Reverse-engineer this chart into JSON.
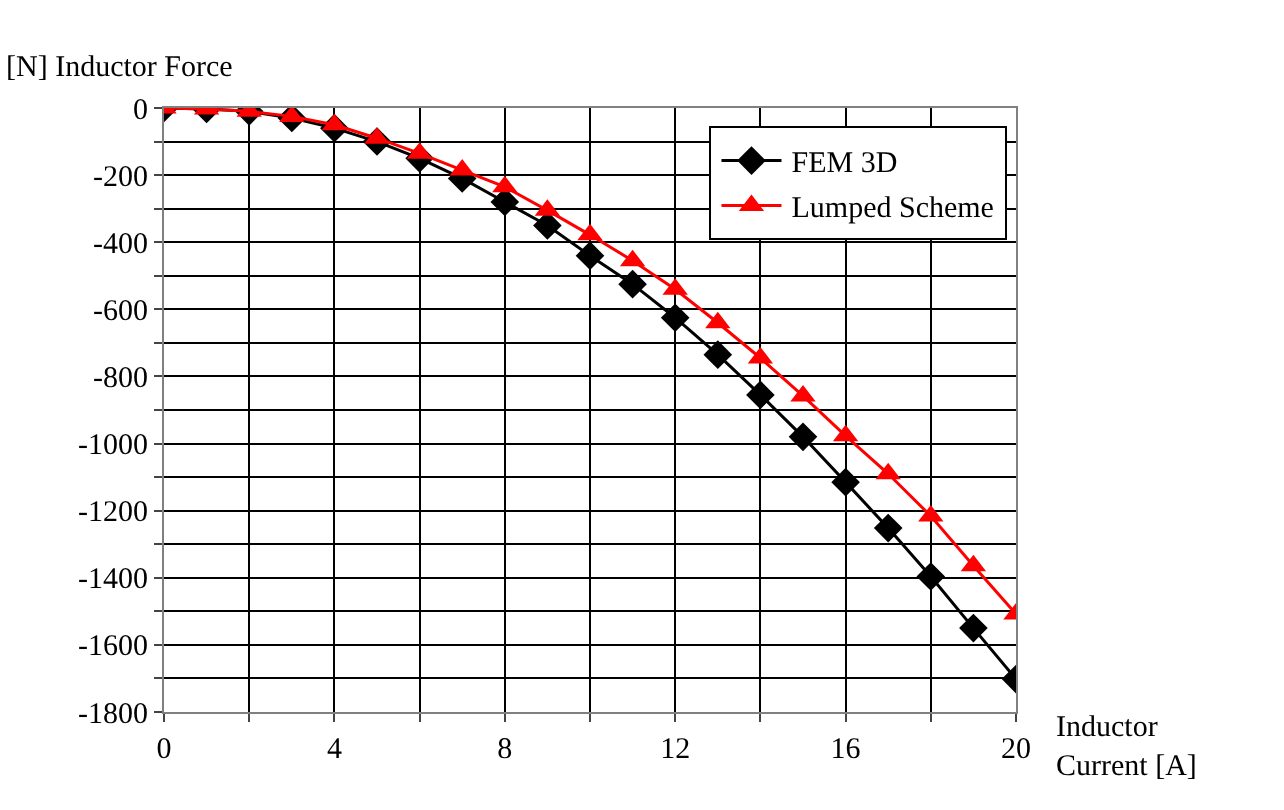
{
  "chart_data": {
    "type": "line",
    "ylabel": "[N] Inductor Force",
    "xlabel": "Inductor Current [A]",
    "x": [
      0,
      1,
      2,
      3,
      4,
      5,
      6,
      7,
      8,
      9,
      10,
      11,
      12,
      13,
      14,
      15,
      16,
      17,
      18,
      19,
      20
    ],
    "series": [
      {
        "name": "FEM 3D",
        "color": "#000000",
        "marker": "diamond",
        "values": [
          0,
          -3,
          -10,
          -30,
          -60,
          -100,
          -150,
          -210,
          -280,
          -350,
          -440,
          -525,
          -625,
          -735,
          -855,
          -980,
          -1115,
          -1252,
          -1396,
          -1550,
          -1702
        ]
      },
      {
        "name": "Lumped Scheme",
        "color": "#ff0000",
        "marker": "triangle",
        "values": [
          0,
          -3,
          -10,
          -25,
          -50,
          -90,
          -135,
          -185,
          -235,
          -305,
          -378,
          -455,
          -540,
          -640,
          -745,
          -858,
          -977,
          -1090,
          -1216,
          -1364,
          -1508
        ]
      }
    ],
    "xlim": [
      0,
      20
    ],
    "xticks": [
      0,
      {
        "value": 2,
        "label": null
      },
      4,
      {
        "value": 6,
        "label": null
      },
      8,
      {
        "value": 10,
        "label": null
      },
      12,
      {
        "value": 14,
        "label": null
      },
      16,
      {
        "value": 18,
        "label": null
      },
      20
    ],
    "ylim": [
      -1800,
      0
    ],
    "yticks": [
      -1800,
      {
        "value": -1700,
        "label": null
      },
      -1600,
      {
        "value": -1500,
        "label": null
      },
      -1400,
      {
        "value": -1300,
        "label": null
      },
      -1200,
      {
        "value": -1100,
        "label": null
      },
      -1000,
      {
        "value": -900,
        "label": null
      },
      -800,
      {
        "value": -700,
        "label": null
      },
      -600,
      {
        "value": -500,
        "label": null
      },
      -400,
      {
        "value": -300,
        "label": null
      },
      -200,
      {
        "value": -100,
        "label": null
      },
      0
    ],
    "grid": true,
    "legend": "top right",
    "line_style": "solid"
  }
}
